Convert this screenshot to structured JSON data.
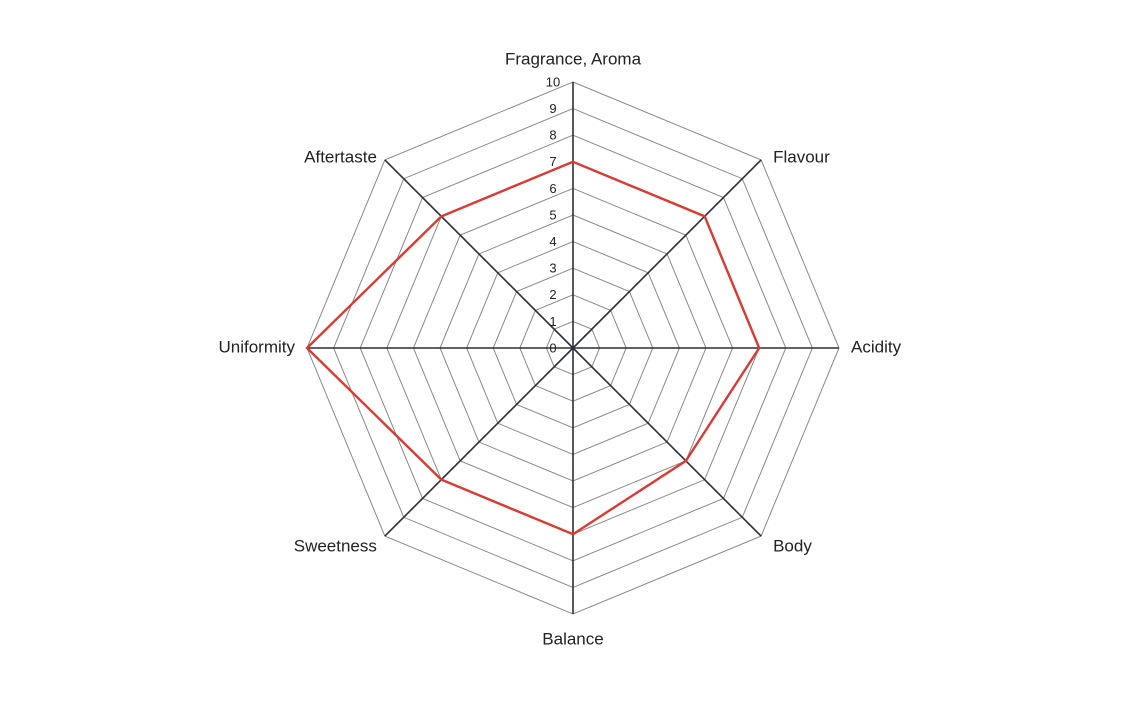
{
  "chart_data": {
    "type": "radar",
    "axes": [
      "Fragrance, Aroma",
      "Flavour",
      "Acidity",
      "Body",
      "Balance",
      "Sweetness",
      "Uniformity",
      "Aftertaste"
    ],
    "rlim": [
      0,
      10
    ],
    "ticks": [
      "0",
      "1",
      "2",
      "3",
      "4",
      "5",
      "6",
      "7",
      "8",
      "9",
      "10"
    ],
    "grid": true,
    "series": [
      {
        "values": [
          7.0,
          7.0,
          7.0,
          6.0,
          7.0,
          7.0,
          10.0,
          7.0
        ]
      }
    ],
    "colors": {
      "series": "#d93a32",
      "grid": "#8a8a8a",
      "spokes": "#2a2f3a"
    }
  }
}
